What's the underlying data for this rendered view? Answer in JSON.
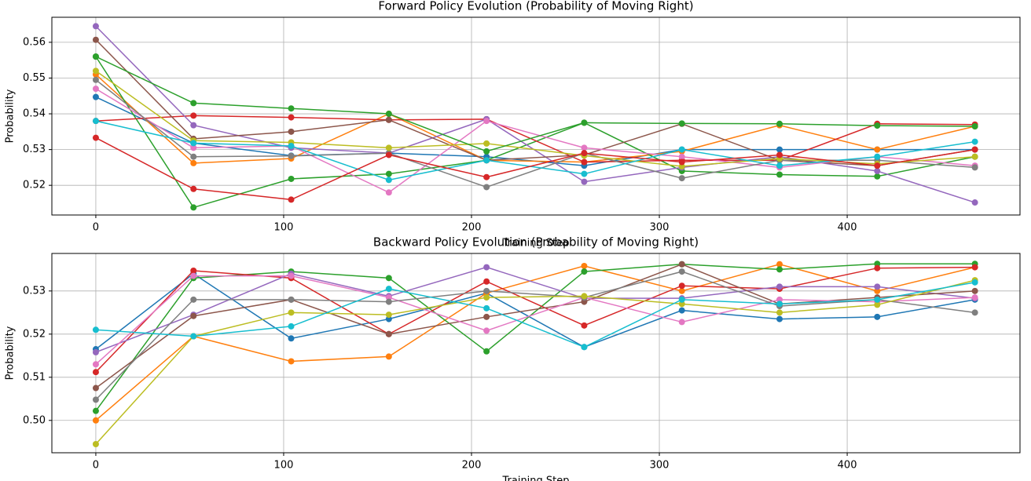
{
  "chart_data": [
    {
      "type": "line",
      "title": "Forward Policy Evolution (Probability of Moving Right)",
      "x_label": "Training Step",
      "y_label": "Probability",
      "x": [
        0,
        52,
        104,
        156,
        208,
        260,
        312,
        364,
        416,
        468
      ],
      "xlim": [
        -23.4,
        492
      ],
      "xticks": [
        0,
        100,
        200,
        300,
        400
      ],
      "ylim": [
        0.5117,
        0.567
      ],
      "yticks": [
        0.52,
        0.53,
        0.54,
        0.55,
        0.56
      ],
      "grid": true,
      "series": [
        {
          "color": "#1f77b4",
          "values": [
            0.5447,
            0.5318,
            0.5283,
            0.529,
            0.528,
            0.5255,
            0.53,
            0.53,
            0.53,
            0.53
          ]
        },
        {
          "color": "#ff7f0e",
          "values": [
            0.551,
            0.5262,
            0.5275,
            0.54,
            0.527,
            0.5265,
            0.5295,
            0.5368,
            0.53,
            0.5365
          ]
        },
        {
          "color": "#2ca02c",
          "values": [
            0.556,
            0.5138,
            0.5218,
            0.5232,
            0.527,
            0.5375,
            0.524,
            0.523,
            0.5225,
            0.528
          ]
        },
        {
          "color": "#d62728",
          "values": [
            0.538,
            0.5395,
            0.539,
            0.5383,
            0.5385,
            0.5265,
            0.527,
            0.527,
            0.5372,
            0.537
          ]
        },
        {
          "color": "#9467bd",
          "values": [
            0.5645,
            0.5368,
            0.5305,
            0.529,
            0.5385,
            0.521,
            0.525,
            0.528,
            0.524,
            0.5152
          ]
        },
        {
          "color": "#8c564b",
          "values": [
            0.5607,
            0.533,
            0.535,
            0.5383,
            0.527,
            0.5285,
            0.5372,
            0.527,
            0.5255,
            0.53
          ]
        },
        {
          "color": "#e377c2",
          "values": [
            0.547,
            0.5305,
            0.531,
            0.518,
            0.538,
            0.5305,
            0.528,
            0.525,
            0.528,
            0.5255
          ]
        },
        {
          "color": "#7f7f7f",
          "values": [
            0.5495,
            0.528,
            0.5282,
            0.529,
            0.5195,
            0.529,
            0.522,
            0.527,
            0.527,
            0.525
          ]
        },
        {
          "color": "#bcbd22",
          "values": [
            0.552,
            0.5325,
            0.532,
            0.5305,
            0.5317,
            0.5283,
            0.5253,
            0.5275,
            0.526,
            0.528
          ]
        },
        {
          "color": "#17becf",
          "values": [
            0.538,
            0.5318,
            0.531,
            0.5215,
            0.527,
            0.5232,
            0.53,
            0.5255,
            0.528,
            0.5322
          ]
        },
        {
          "color": "#d62728",
          "values": [
            0.5333,
            0.519,
            0.516,
            0.5285,
            0.5223,
            0.529,
            0.5265,
            0.5285,
            0.5255,
            0.53
          ]
        },
        {
          "color": "#2ca02c",
          "values": [
            0.556,
            0.543,
            0.5415,
            0.54,
            0.5295,
            0.5375,
            0.5373,
            0.5372,
            0.5367,
            0.5365
          ]
        }
      ]
    },
    {
      "type": "line",
      "title": "Backward Policy Evolution (Probability of Moving Right)",
      "x_label": "Training Step",
      "y_label": "Probability",
      "x": [
        0,
        52,
        104,
        156,
        208,
        260,
        312,
        364,
        416,
        468
      ],
      "xlim": [
        -23.4,
        492
      ],
      "xticks": [
        0,
        100,
        200,
        300,
        400
      ],
      "ylim": [
        0.4925,
        0.5387
      ],
      "yticks": [
        {
          "value": 0.5,
          "label": "0.50"
        },
        0.51,
        0.52,
        0.53
      ],
      "grid": true,
      "series": [
        {
          "color": "#1f77b4",
          "values": [
            0.5165,
            0.534,
            0.519,
            0.5235,
            0.5295,
            0.517,
            0.5255,
            0.5235,
            0.524,
            0.528
          ]
        },
        {
          "color": "#ff7f0e",
          "values": [
            0.5,
            0.5195,
            0.5137,
            0.5148,
            0.5295,
            0.5358,
            0.53,
            0.5362,
            0.53,
            0.5355
          ]
        },
        {
          "color": "#2ca02c",
          "values": [
            0.5022,
            0.533,
            0.5345,
            0.533,
            0.516,
            0.5345,
            0.5362,
            0.535,
            0.5363,
            0.5363
          ]
        },
        {
          "color": "#d62728",
          "values": [
            0.5112,
            0.5347,
            0.533,
            0.52,
            0.5322,
            0.522,
            0.5312,
            0.5305,
            0.5353,
            0.5355
          ]
        },
        {
          "color": "#9467bd",
          "values": [
            0.5158,
            0.5245,
            0.534,
            0.5288,
            0.5355,
            0.5283,
            0.5283,
            0.531,
            0.531,
            0.5283
          ]
        },
        {
          "color": "#8c564b",
          "values": [
            0.5075,
            0.5242,
            0.528,
            0.52,
            0.524,
            0.5275,
            0.5362,
            0.527,
            0.5285,
            0.53
          ]
        },
        {
          "color": "#e377c2",
          "values": [
            0.513,
            0.5335,
            0.5335,
            0.5285,
            0.5208,
            0.5285,
            0.5228,
            0.528,
            0.5275,
            0.5285
          ]
        },
        {
          "color": "#7f7f7f",
          "values": [
            0.5048,
            0.528,
            0.528,
            0.5275,
            0.53,
            0.5285,
            0.5345,
            0.5265,
            0.528,
            0.525
          ]
        },
        {
          "color": "#bcbd22",
          "values": [
            0.4945,
            0.5195,
            0.525,
            0.5245,
            0.5285,
            0.5288,
            0.527,
            0.525,
            0.5268,
            0.5325
          ]
        },
        {
          "color": "#17becf",
          "values": [
            0.521,
            0.5195,
            0.5218,
            0.5305,
            0.526,
            0.517,
            0.528,
            0.527,
            0.528,
            0.532
          ]
        }
      ]
    }
  ]
}
